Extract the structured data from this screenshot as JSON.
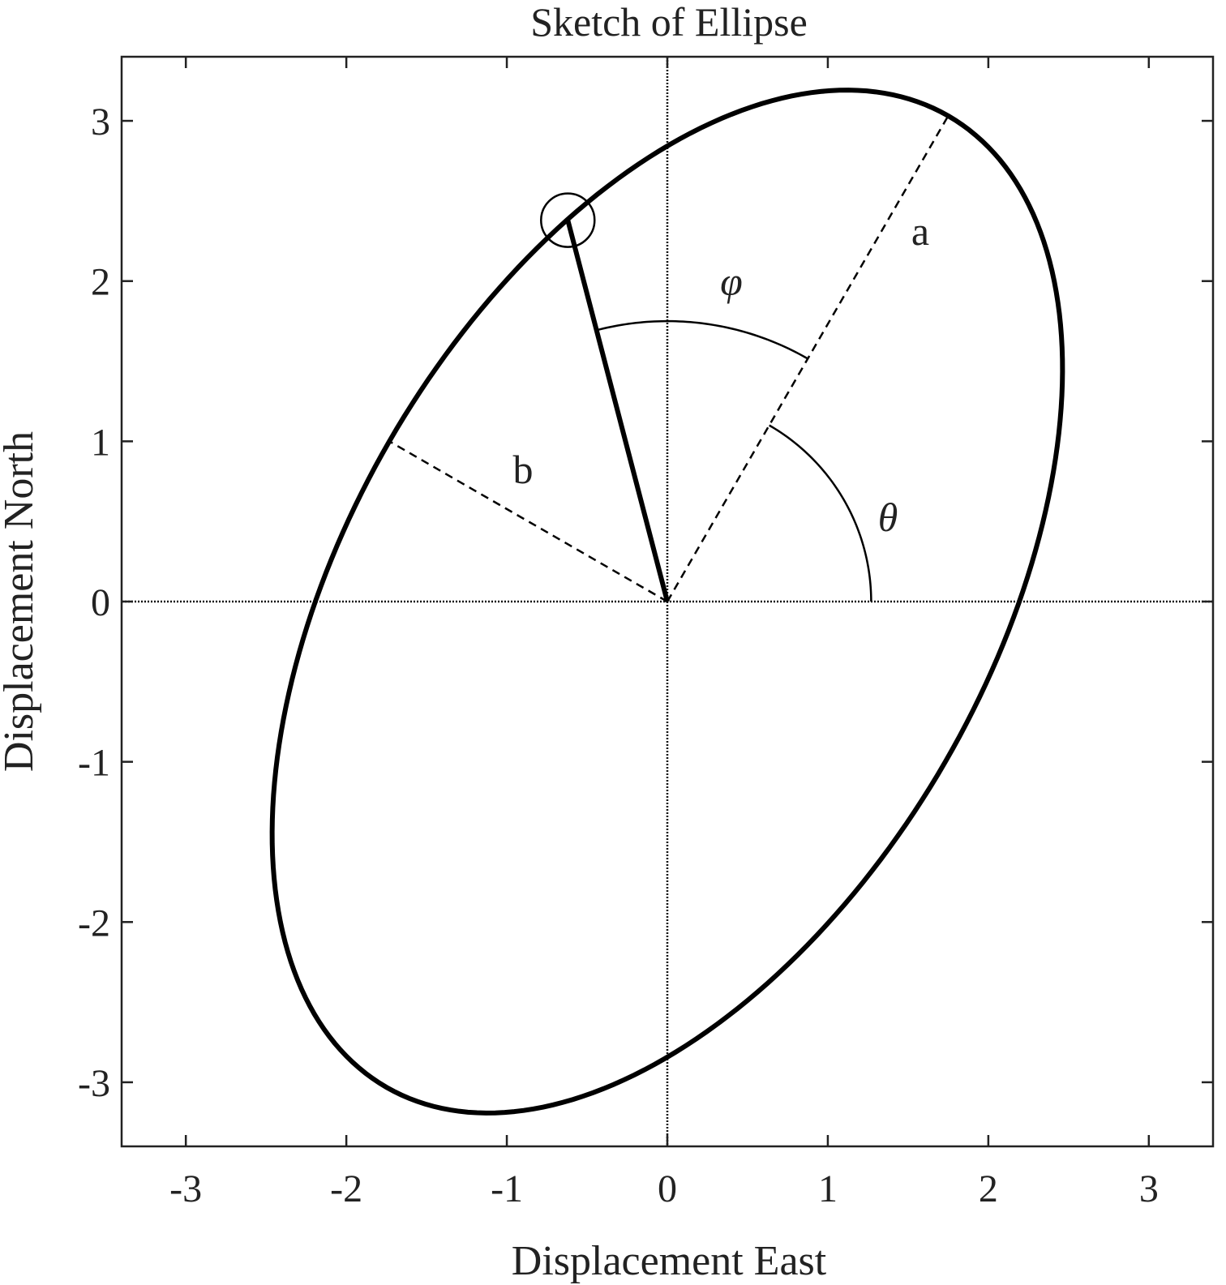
{
  "chart_data": {
    "type": "line",
    "title": "Sketch of Ellipse",
    "xlabel": "Displacement East",
    "ylabel": "Displacement North",
    "xlim": [
      -3.4,
      3.4
    ],
    "ylim": [
      -3.4,
      3.4
    ],
    "xticks": [
      "-3",
      "-2",
      "-1",
      "0",
      "1",
      "2",
      "3"
    ],
    "yticks": [
      "-3",
      "-2",
      "-1",
      "0",
      "1",
      "2",
      "3"
    ],
    "grid": false,
    "ellipse": {
      "center": [
        0,
        0
      ],
      "semi_major_a": 3.5,
      "semi_minor_b": 2.0,
      "orientation_theta_deg": 60
    },
    "series": [
      {
        "values": "ellipse outline (a = 3.5, b = 2.0, theta = 60 deg)"
      }
    ],
    "annotations": {
      "a_label": "a",
      "b_label": "b",
      "phi_label": "φ",
      "theta_label": "θ",
      "marked_point": [
        -0.62,
        2.38
      ],
      "phi_arc_radius": 1.75,
      "theta_arc_radius": 1.27
    }
  }
}
